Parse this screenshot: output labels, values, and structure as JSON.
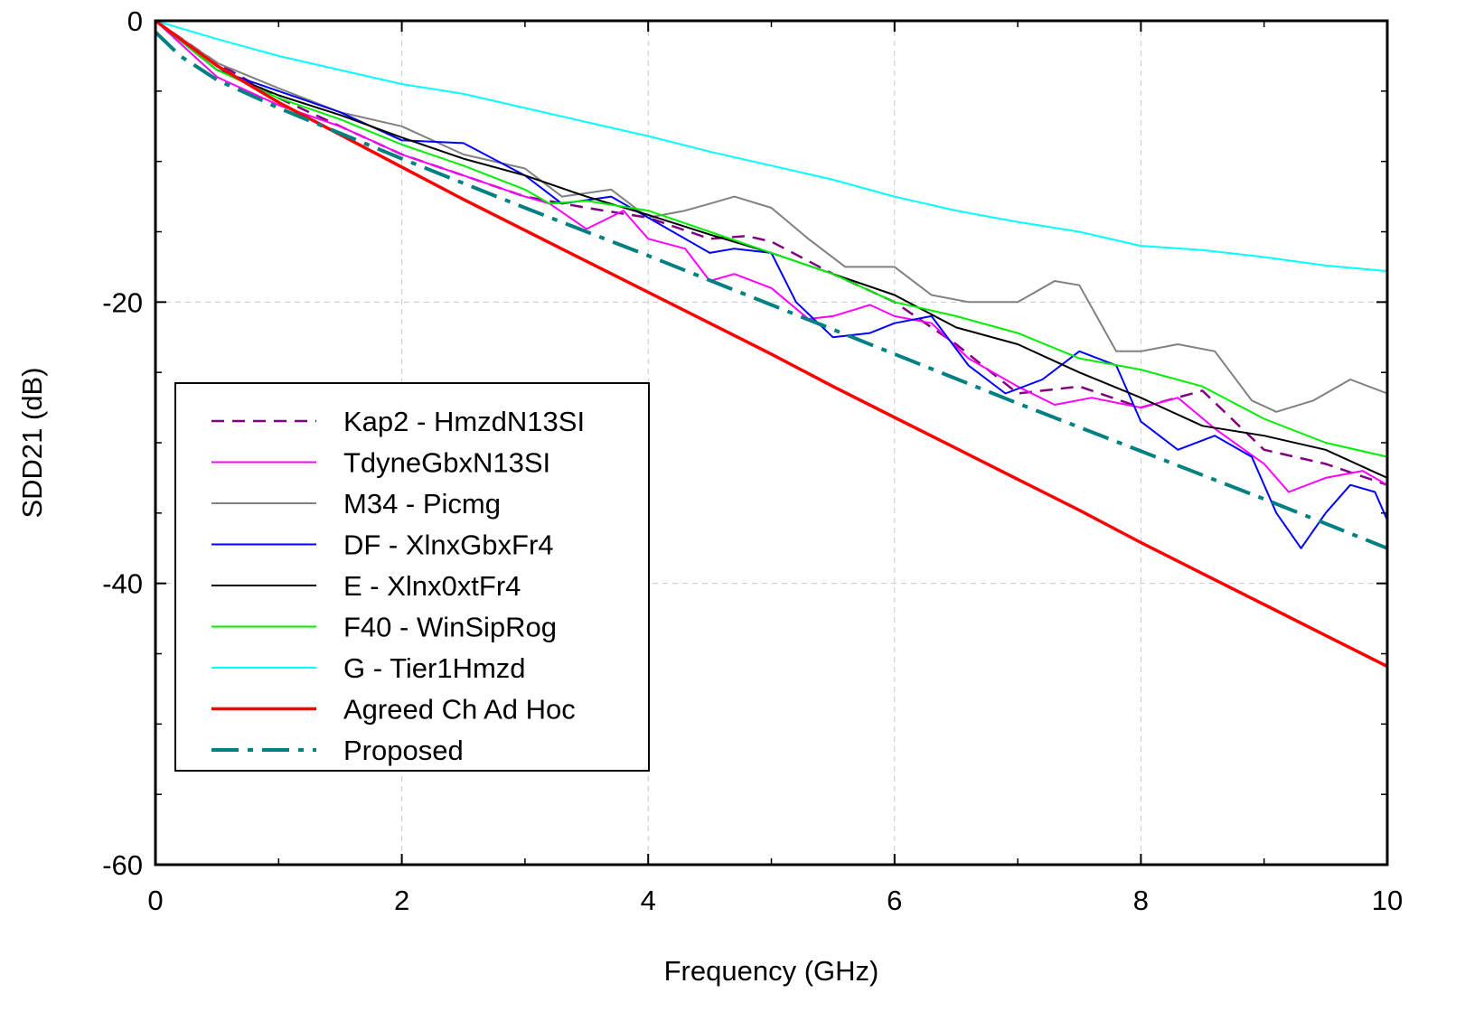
{
  "chart_data": {
    "type": "line",
    "title": "",
    "xlabel": "Frequency (GHz)",
    "ylabel": "SDD21 (dB)",
    "xlim": [
      0,
      10
    ],
    "ylim": [
      -60,
      0
    ],
    "xticks": [
      0,
      2,
      4,
      6,
      8,
      10
    ],
    "yticks": [
      0,
      -20,
      -40,
      -60
    ],
    "minor_x_step": 1,
    "minor_y_step": 5,
    "grid": "dashed, major ticks",
    "legend_position": "lower-left",
    "series": [
      {
        "name": "Kap2 - HmzdN13SI",
        "color": "#800080",
        "style": "dashed",
        "x": [
          0,
          0.5,
          1,
          1.5,
          2,
          2.5,
          3,
          3.5,
          4,
          4.5,
          4.8,
          5,
          5.5,
          6,
          6.5,
          7,
          7.5,
          8,
          8.5,
          9,
          9.5,
          10
        ],
        "y": [
          0,
          -3,
          -5.5,
          -7.5,
          -9.5,
          -11,
          -12.5,
          -13.3,
          -14,
          -15.5,
          -15.3,
          -15.7,
          -18,
          -20,
          -23,
          -26.5,
          -26,
          -27.5,
          -26.3,
          -30.5,
          -31.5,
          -33
        ]
      },
      {
        "name": "TdyneGbxN13SI",
        "color": "#ff00ff",
        "style": "solid",
        "x": [
          0,
          0.5,
          1,
          1.5,
          2,
          2.5,
          3,
          3.2,
          3.5,
          3.8,
          4,
          4.3,
          4.5,
          4.7,
          5,
          5.3,
          5.5,
          5.8,
          6,
          6.3,
          6.6,
          7,
          7.3,
          7.6,
          8,
          8.3,
          8.6,
          9,
          9.2,
          9.5,
          9.8,
          10
        ],
        "y": [
          0,
          -4,
          -6,
          -7.5,
          -9.5,
          -11,
          -12.5,
          -13,
          -14.8,
          -13.5,
          -15.5,
          -16.2,
          -18.5,
          -18,
          -19,
          -21.2,
          -21,
          -20.2,
          -21,
          -21.5,
          -24,
          -26,
          -27.3,
          -26.8,
          -27.5,
          -26.8,
          -29,
          -31.5,
          -33.5,
          -32.5,
          -32,
          -33
        ]
      },
      {
        "name": "M34 - Picmg",
        "color": "#808080",
        "style": "solid",
        "x": [
          0,
          0.5,
          1,
          1.5,
          2,
          2.5,
          3,
          3.3,
          3.7,
          4,
          4.3,
          4.5,
          4.7,
          5,
          5.3,
          5.6,
          6,
          6.3,
          6.6,
          7,
          7.3,
          7.5,
          7.8,
          8,
          8.3,
          8.6,
          8.9,
          9.1,
          9.4,
          9.7,
          10
        ],
        "y": [
          0,
          -3,
          -4.8,
          -6.5,
          -7.5,
          -9.5,
          -10.5,
          -12.5,
          -12,
          -14,
          -13.5,
          -13,
          -12.5,
          -13.3,
          -15.5,
          -17.5,
          -17.5,
          -19.5,
          -20,
          -20,
          -18.5,
          -18.8,
          -23.5,
          -23.5,
          -23,
          -23.5,
          -27,
          -27.8,
          -27,
          -25.5,
          -26.5
        ]
      },
      {
        "name": "DF - XlnxGbxFr4",
        "color": "#0000ff",
        "style": "solid",
        "x": [
          0,
          0.5,
          1,
          1.5,
          2,
          2.5,
          3,
          3.3,
          3.7,
          4,
          4.3,
          4.5,
          4.7,
          5,
          5.2,
          5.5,
          5.8,
          6,
          6.3,
          6.6,
          6.9,
          7.2,
          7.5,
          7.8,
          8,
          8.3,
          8.6,
          8.9,
          9.1,
          9.3,
          9.5,
          9.7,
          9.9,
          10
        ],
        "y": [
          0,
          -3.5,
          -5,
          -6.5,
          -8.5,
          -8.7,
          -11,
          -13,
          -12.5,
          -14,
          -15.5,
          -16.5,
          -16.2,
          -16.5,
          -20,
          -22.5,
          -22.2,
          -21.5,
          -21,
          -24.5,
          -26.5,
          -25.5,
          -23.5,
          -24.5,
          -28.5,
          -30.5,
          -29.5,
          -31,
          -35,
          -37.5,
          -35,
          -33,
          -33.5,
          -35.5
        ]
      },
      {
        "name": "E - Xlnx0xtFr4",
        "color": "#000000",
        "style": "solid",
        "x": [
          0,
          0.5,
          1,
          1.5,
          2,
          2.5,
          3,
          3.5,
          4,
          4.5,
          5,
          5.5,
          6,
          6.5,
          7,
          7.5,
          8,
          8.5,
          9,
          9.5,
          10
        ],
        "y": [
          0,
          -3.5,
          -5.3,
          -6.7,
          -8.3,
          -9.8,
          -11,
          -12.5,
          -13.8,
          -15.2,
          -16.5,
          -18,
          -19.5,
          -21.8,
          -23,
          -25,
          -26.8,
          -28.8,
          -29.5,
          -30.5,
          -32.5
        ]
      },
      {
        "name": "F40 - WinSipRog",
        "color": "#00ee00",
        "style": "solid",
        "x": [
          0,
          0.5,
          1,
          1.5,
          2,
          2.5,
          3,
          3.2,
          3.5,
          4,
          4.5,
          5,
          5.5,
          6,
          6.5,
          7,
          7.5,
          8,
          8.5,
          9,
          9.5,
          10
        ],
        "y": [
          0,
          -3.5,
          -5.5,
          -7,
          -8.8,
          -10.3,
          -12,
          -13,
          -12.8,
          -13.5,
          -15,
          -16.5,
          -18,
          -20,
          -21,
          -22.2,
          -24,
          -24.8,
          -26,
          -28.3,
          -30,
          -31
        ]
      },
      {
        "name": "G - Tier1Hmzd",
        "color": "#00ffff",
        "style": "solid",
        "x": [
          0,
          0.5,
          1,
          1.5,
          2,
          2.5,
          3,
          3.5,
          4,
          4.5,
          5,
          5.5,
          6,
          6.5,
          7,
          7.5,
          8,
          8.5,
          9,
          9.5,
          10
        ],
        "y": [
          0,
          -1.3,
          -2.5,
          -3.5,
          -4.5,
          -5.2,
          -6.2,
          -7.2,
          -8.2,
          -9.3,
          -10.3,
          -11.3,
          -12.5,
          -13.5,
          -14.3,
          -15,
          -16,
          -16.3,
          -16.8,
          -17.4,
          -17.8
        ]
      },
      {
        "name": "Agreed Ch Ad Hoc",
        "color": "#ff0000",
        "style": "thick",
        "x": [
          0,
          0.5,
          1,
          1.5,
          2,
          2.5,
          3,
          3.5,
          4,
          4.5,
          5,
          5.5,
          6,
          6.5,
          7,
          7.5,
          8,
          8.5,
          9,
          9.5,
          10
        ],
        "y": [
          0,
          -3.2,
          -5.8,
          -8.1,
          -10.4,
          -12.7,
          -14.9,
          -17.1,
          -19.3,
          -21.5,
          -23.7,
          -26.0,
          -28.2,
          -30.4,
          -32.6,
          -34.8,
          -37.1,
          -39.3,
          -41.5,
          -43.7,
          -45.9
        ]
      },
      {
        "name": "Proposed",
        "color": "#008080",
        "style": "dashdot",
        "x": [
          0,
          0.2,
          0.5,
          1,
          1.5,
          2,
          3,
          4,
          5,
          6,
          7,
          8,
          9,
          10
        ],
        "y": [
          -0.8,
          -2.5,
          -4.2,
          -6.2,
          -8,
          -9.8,
          -13.3,
          -16.7,
          -20.2,
          -23.7,
          -27.2,
          -30.6,
          -34,
          -37.5
        ]
      }
    ]
  }
}
